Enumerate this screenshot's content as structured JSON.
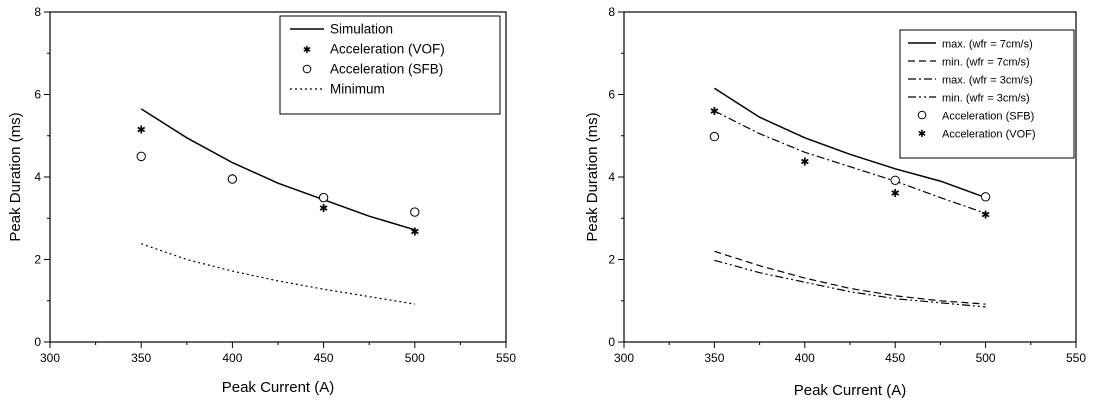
{
  "chart_data": [
    {
      "type": "line",
      "title": "",
      "xlabel": "Peak Current (A)",
      "ylabel": "Peak Duration (ms)",
      "xlim": [
        300,
        550
      ],
      "ylim": [
        0,
        8
      ],
      "xticks": [
        "300",
        "350",
        "400",
        "450",
        "500",
        "550"
      ],
      "yticks": [
        "0",
        "2",
        "4",
        "6",
        "8"
      ],
      "grid": false,
      "legend_position": "top-right",
      "series": [
        {
          "name": "Simulation",
          "style": "solid",
          "x": [
            350,
            375,
            400,
            425,
            450,
            475,
            500
          ],
          "y": [
            5.65,
            4.95,
            4.35,
            3.85,
            3.45,
            3.05,
            2.72
          ]
        },
        {
          "name": "Acceleration (VOF)",
          "style": "star",
          "x": [
            350,
            400,
            450,
            500
          ],
          "y": [
            5.15,
            3.98,
            3.25,
            2.68
          ]
        },
        {
          "name": "Acceleration (SFB)",
          "style": "circle",
          "x": [
            350,
            400,
            450,
            500
          ],
          "y": [
            4.5,
            3.95,
            3.5,
            3.15
          ]
        },
        {
          "name": "Minimum",
          "style": "dotted",
          "x": [
            350,
            375,
            400,
            425,
            450,
            475,
            500
          ],
          "y": [
            2.38,
            2.0,
            1.72,
            1.48,
            1.28,
            1.1,
            0.92
          ]
        }
      ]
    },
    {
      "type": "line",
      "title": "",
      "xlabel": "Peak Current (A)",
      "ylabel": "Peak Duration (ms)",
      "xlim": [
        300,
        550
      ],
      "ylim": [
        0,
        8
      ],
      "xticks": [
        "300",
        "350",
        "400",
        "450",
        "500",
        "550"
      ],
      "yticks": [
        "0",
        "2",
        "4",
        "6",
        "8"
      ],
      "grid": false,
      "legend_position": "top-right",
      "series": [
        {
          "name": "max. (wfr = 7cm/s)",
          "style": "solid",
          "x": [
            350,
            375,
            400,
            425,
            450,
            475,
            500
          ],
          "y": [
            6.15,
            5.45,
            4.95,
            4.55,
            4.2,
            3.9,
            3.5
          ]
        },
        {
          "name": "min. (wfr = 7cm/s)",
          "style": "dashed",
          "x": [
            350,
            375,
            400,
            425,
            450,
            475,
            500
          ],
          "y": [
            2.2,
            1.85,
            1.55,
            1.3,
            1.12,
            1.0,
            0.92
          ]
        },
        {
          "name": "max. (wfr = 3cm/s)",
          "style": "dashdot",
          "x": [
            350,
            375,
            400,
            425,
            450,
            475,
            500
          ],
          "y": [
            5.6,
            5.05,
            4.6,
            4.25,
            3.9,
            3.5,
            3.12
          ]
        },
        {
          "name": "min. (wfr = 3cm/s)",
          "style": "dashdotdot",
          "x": [
            350,
            375,
            400,
            425,
            450,
            475,
            500
          ],
          "y": [
            1.98,
            1.68,
            1.45,
            1.22,
            1.05,
            0.95,
            0.85
          ]
        },
        {
          "name": "Acceleration (SFB)",
          "style": "circle",
          "x": [
            350,
            450,
            500
          ],
          "y": [
            4.98,
            3.92,
            3.52
          ]
        },
        {
          "name": "Acceleration (VOF)",
          "style": "star",
          "x": [
            350,
            400,
            450,
            500
          ],
          "y": [
            5.6,
            4.38,
            3.62,
            3.1
          ]
        }
      ]
    }
  ]
}
